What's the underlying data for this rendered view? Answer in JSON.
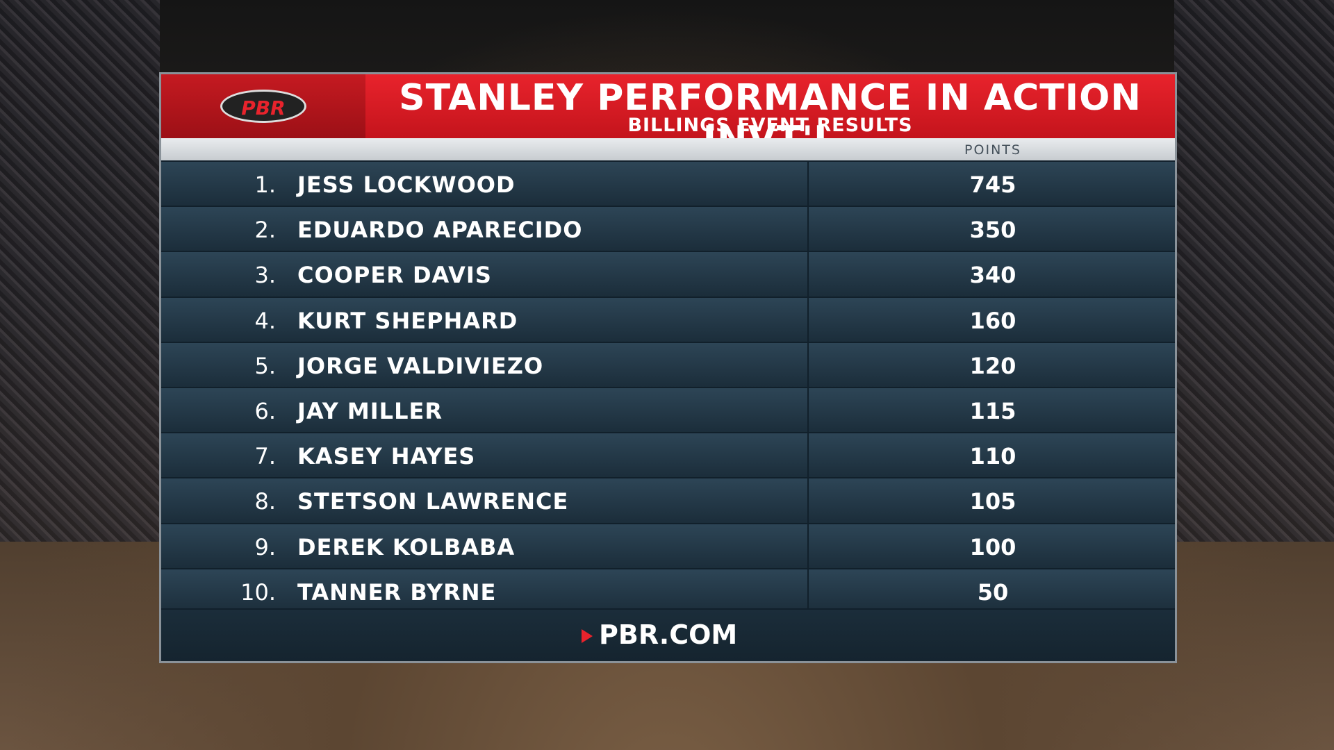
{
  "header": {
    "logo": "PBR",
    "title": "STANLEY PERFORMANCE IN ACTION INVT'L",
    "subtitle": "BILLINGS EVENT RESULTS"
  },
  "table": {
    "column_header": "POINTS",
    "rows": [
      [
        "1.",
        "JESS LOCKWOOD",
        745
      ],
      [
        "2.",
        "EDUARDO APARECIDO",
        350
      ],
      [
        "3.",
        "COOPER DAVIS",
        340
      ],
      [
        "4.",
        "KURT SHEPHARD",
        160
      ],
      [
        "5.",
        "JORGE VALDIVIEZO",
        120
      ],
      [
        "6.",
        "JAY MILLER",
        115
      ],
      [
        "7.",
        "KASEY HAYES",
        110
      ],
      [
        "8.",
        "STETSON LAWRENCE",
        105
      ],
      [
        "9.",
        "DEREK KOLBABA",
        100
      ],
      [
        "10.",
        "TANNER BYRNE",
        50
      ]
    ]
  },
  "footer": {
    "site": "PBR.COM"
  }
}
